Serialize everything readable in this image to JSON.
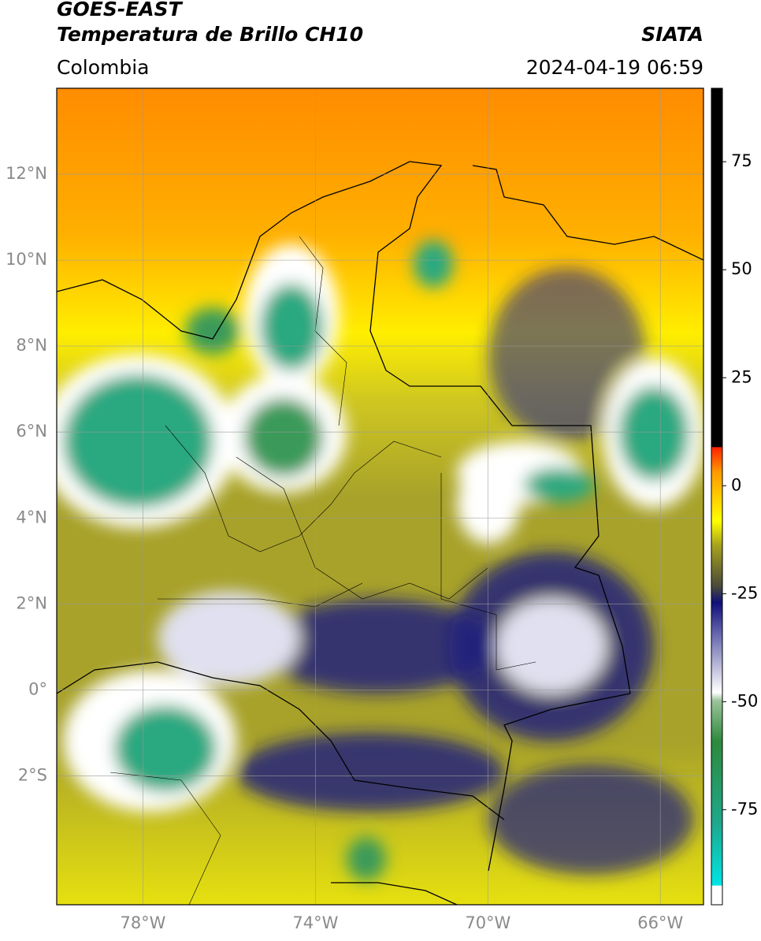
{
  "header": {
    "title": "GOES-EAST",
    "subtitle": "Temperatura de Brillo CH10",
    "source": "SIATA",
    "region": "Colombia",
    "datetime": "2024-04-19 06:59"
  },
  "map": {
    "lonlim": [
      -80,
      -65
    ],
    "latlim": [
      -5,
      14
    ],
    "lon_ticks": [
      {
        "value": -78,
        "label": "78°W"
      },
      {
        "value": -74,
        "label": "74°W"
      },
      {
        "value": -70,
        "label": "70°W"
      },
      {
        "value": -66,
        "label": "66°W"
      }
    ],
    "lat_ticks": [
      {
        "value": 12,
        "label": "12°N"
      },
      {
        "value": 10,
        "label": "10°N"
      },
      {
        "value": 8,
        "label": "8°N"
      },
      {
        "value": 6,
        "label": "6°N"
      },
      {
        "value": 4,
        "label": "4°N"
      },
      {
        "value": 2,
        "label": "2°N"
      },
      {
        "value": 0,
        "label": "0°"
      },
      {
        "value": -2,
        "label": "2°S"
      }
    ]
  },
  "colorbar": {
    "lim": [
      -97,
      92
    ],
    "ticks": [
      75,
      50,
      25,
      0,
      -25,
      -50,
      -75
    ]
  }
}
